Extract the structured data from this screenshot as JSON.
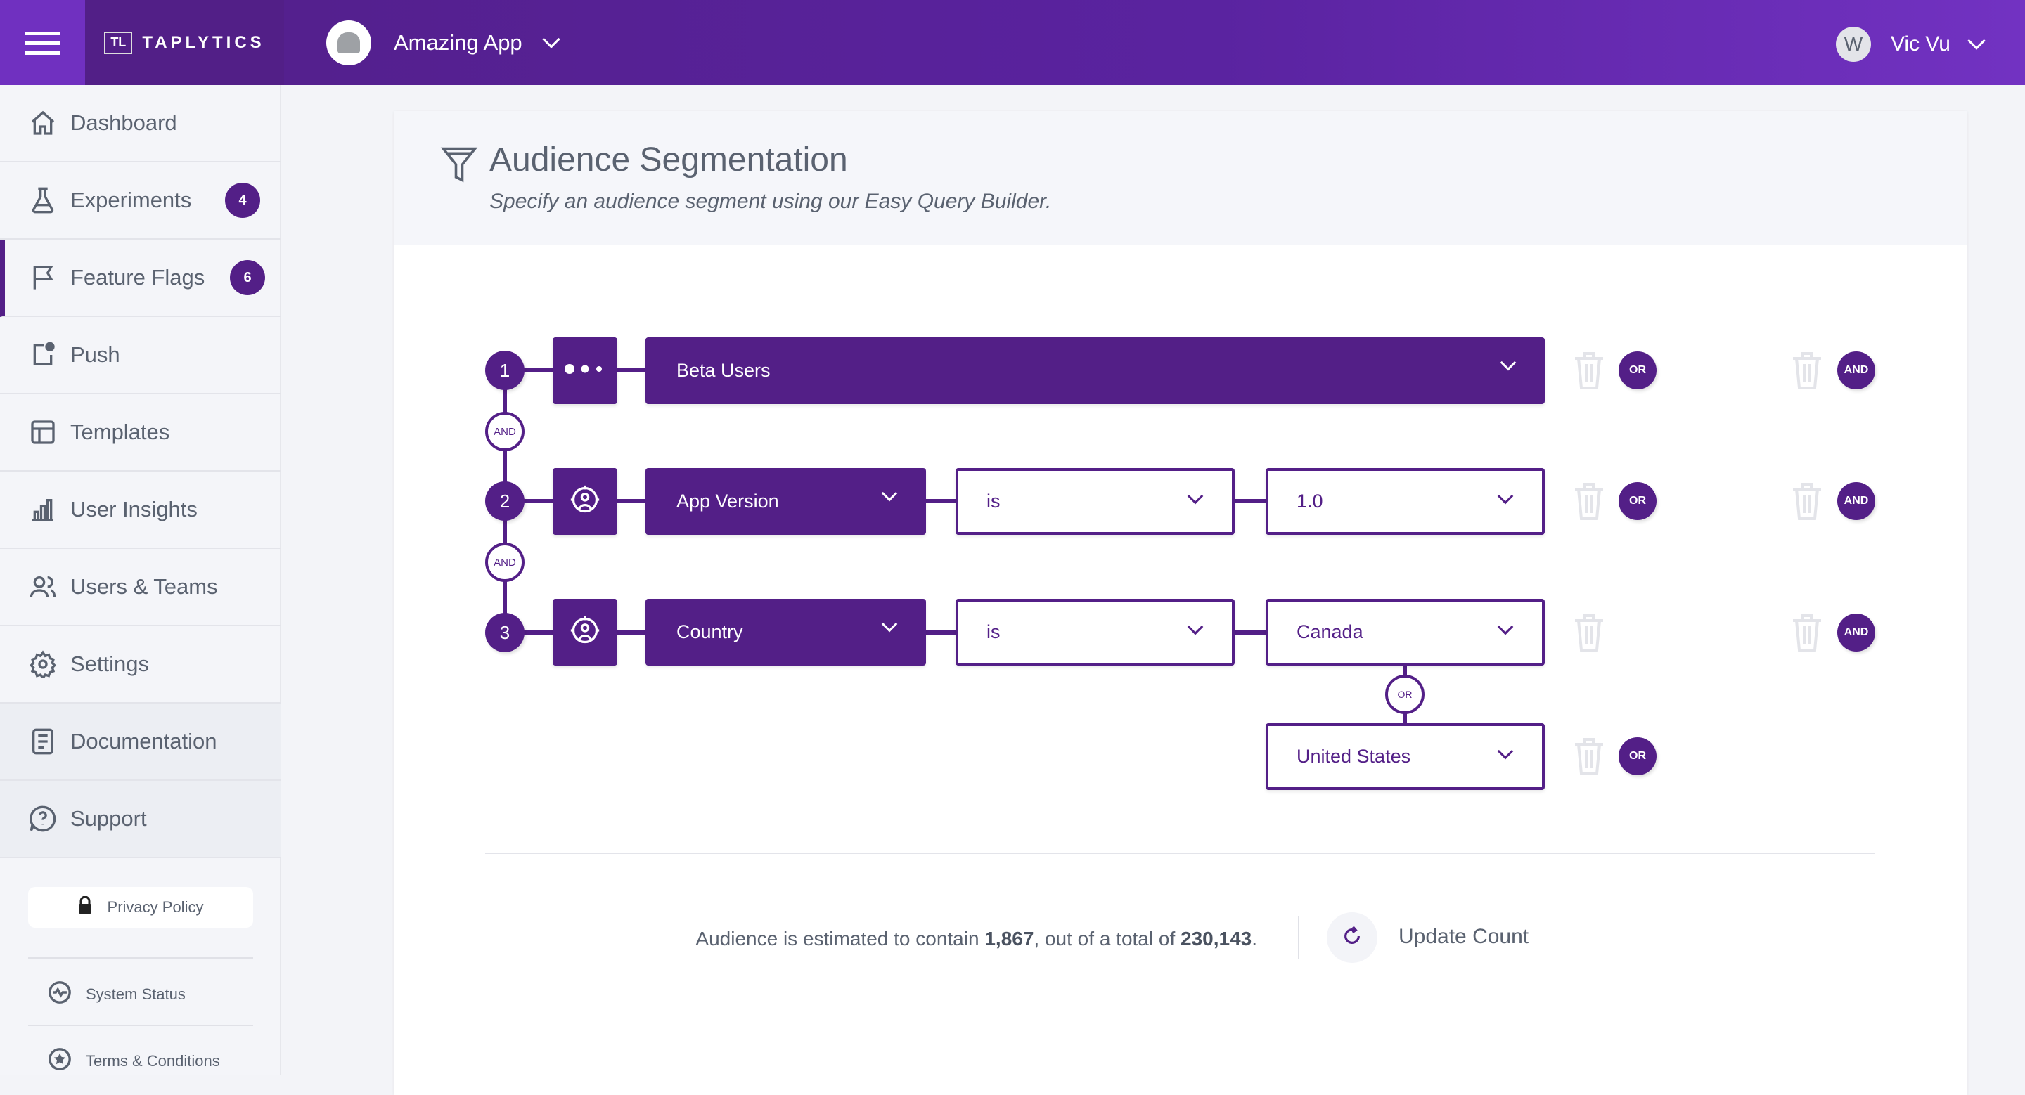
{
  "header": {
    "logo_text": "TAPLYTICS",
    "logo_mark": "TL",
    "app_name": "Amazing App",
    "user_name": "Vic Vu",
    "user_initial": "W"
  },
  "sidebar": {
    "items": [
      {
        "label": "Dashboard",
        "icon": "home-icon"
      },
      {
        "label": "Experiments",
        "icon": "flask-icon",
        "badge": "4"
      },
      {
        "label": "Feature Flags",
        "icon": "flag-icon",
        "badge": "6",
        "active": true
      },
      {
        "label": "Push",
        "icon": "push-icon"
      },
      {
        "label": "Templates",
        "icon": "template-icon"
      },
      {
        "label": "User Insights",
        "icon": "bar-chart-icon"
      },
      {
        "label": "Users & Teams",
        "icon": "users-icon"
      },
      {
        "label": "Settings",
        "icon": "gear-icon"
      },
      {
        "label": "Documentation",
        "icon": "document-icon"
      },
      {
        "label": "Support",
        "icon": "help-icon"
      }
    ],
    "privacy": "Privacy Policy",
    "system_status": "System Status",
    "terms": "Terms & Conditions"
  },
  "card": {
    "title": "Audience Segmentation",
    "subtitle": "Specify an audience segment using our Easy Query Builder."
  },
  "rules": [
    {
      "number": "1",
      "icon": "more-icon",
      "property": "Beta Users"
    },
    {
      "number": "2",
      "icon": "target-user-icon",
      "property": "App Version",
      "operator": "is",
      "value": "1.0"
    },
    {
      "number": "3",
      "icon": "target-user-icon",
      "property": "Country",
      "operator": "is",
      "value": "Canada",
      "or_value": "United States"
    }
  ],
  "connectors": {
    "and": "AND",
    "or": "OR"
  },
  "footer": {
    "prefix": "Audience is estimated to contain ",
    "count": "1,867",
    "middle": ", out of a total of ",
    "total": "230,143",
    "suffix": ".",
    "update_label": "Update Count"
  },
  "colors": {
    "primary": "#531f87",
    "header_accent": "#7030c0",
    "sidebar_bg": "#f4f5f9"
  }
}
